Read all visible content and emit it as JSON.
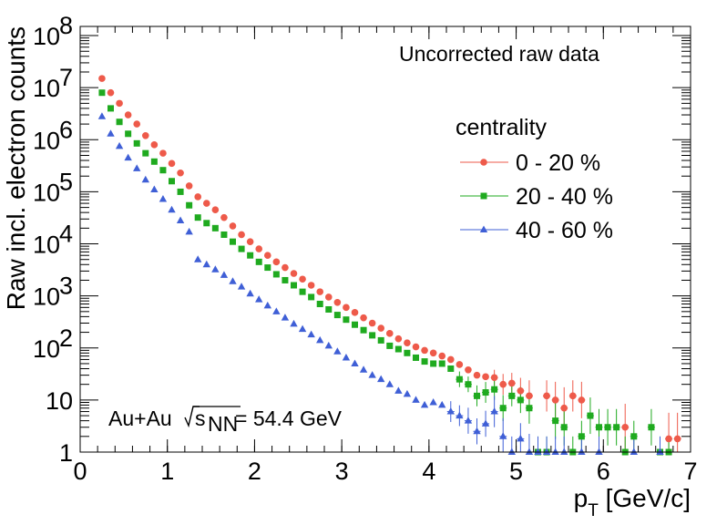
{
  "chart_data": {
    "type": "scatter",
    "ylabel": "Raw incl. electron counts",
    "xlabel": {
      "main": "p",
      "sub": "T",
      "unit": " [GeV/c]"
    },
    "annotation_top": "Uncorrected raw data",
    "annotation_bottom": {
      "system": "Au+Au",
      "sqrt_sub": "NN",
      "rest": " = 54.4 GeV"
    },
    "legend": {
      "title": "centrality",
      "placement": "top-right"
    },
    "xlim": [
      0,
      7
    ],
    "ylim": [
      1,
      150000000
    ],
    "y_scale": "log",
    "x_ticks": [
      "0",
      "1",
      "2",
      "3",
      "4",
      "5",
      "6",
      "7"
    ],
    "y_ticks": [
      {
        "value": 1,
        "label": "1"
      },
      {
        "value": 10,
        "label": "10"
      },
      {
        "value": 100,
        "label": "10",
        "exp": "2"
      },
      {
        "value": 1000,
        "label": "10",
        "exp": "3"
      },
      {
        "value": 10000,
        "label": "10",
        "exp": "4"
      },
      {
        "value": 100000,
        "label": "10",
        "exp": "5"
      },
      {
        "value": 1000000,
        "label": "10",
        "exp": "6"
      },
      {
        "value": 10000000,
        "label": "10",
        "exp": "7"
      },
      {
        "value": 100000000,
        "label": "10",
        "exp": "8"
      }
    ],
    "series": [
      {
        "name": "0 - 20 %",
        "color": "#ee5a4a",
        "marker": "circle",
        "x": [
          0.25,
          0.35,
          0.45,
          0.55,
          0.65,
          0.75,
          0.85,
          0.95,
          1.05,
          1.15,
          1.25,
          1.35,
          1.45,
          1.55,
          1.65,
          1.75,
          1.85,
          1.95,
          2.05,
          2.15,
          2.25,
          2.35,
          2.45,
          2.55,
          2.65,
          2.75,
          2.85,
          2.95,
          3.05,
          3.15,
          3.25,
          3.35,
          3.45,
          3.55,
          3.65,
          3.75,
          3.85,
          3.95,
          4.05,
          4.15,
          4.25,
          4.35,
          4.45,
          4.55,
          4.65,
          4.75,
          4.85,
          4.95,
          5.05,
          5.15,
          5.35,
          5.45,
          5.55,
          5.65,
          5.75,
          6.25,
          6.75,
          6.85
        ],
        "y": [
          15000000,
          8000000,
          5000000,
          3000000,
          2000000,
          1200000,
          800000,
          550000,
          350000,
          230000,
          130000,
          80000,
          60000,
          45000,
          32000,
          22000,
          15000,
          11000,
          8000,
          6000,
          4500,
          3500,
          2700,
          2100,
          1600,
          1200,
          950,
          750,
          600,
          480,
          380,
          300,
          240,
          190,
          150,
          125,
          105,
          90,
          80,
          70,
          60,
          48,
          38,
          30,
          28,
          27,
          20,
          21,
          15,
          12,
          12,
          10,
          7,
          12,
          10,
          3,
          1.8,
          1.8
        ],
        "err": [
          0,
          0,
          0,
          0,
          0,
          0,
          0,
          0,
          0,
          0,
          0,
          0,
          0,
          0,
          0,
          0,
          0,
          0,
          0,
          0,
          0,
          0,
          0,
          0,
          0,
          0,
          0,
          0,
          0,
          0,
          0,
          0,
          0,
          0,
          0,
          0,
          0,
          0,
          0,
          0,
          0,
          0,
          0,
          0,
          0,
          0.15,
          0.2,
          0.2,
          0.25,
          0.3,
          0.3,
          0.35,
          0.4,
          0.3,
          0.35,
          0.45,
          0.5,
          0.5
        ]
      },
      {
        "name": "20 - 40 %",
        "color": "#1faa1f",
        "marker": "square",
        "x": [
          0.25,
          0.35,
          0.45,
          0.55,
          0.65,
          0.75,
          0.85,
          0.95,
          1.05,
          1.15,
          1.25,
          1.35,
          1.45,
          1.55,
          1.65,
          1.75,
          1.85,
          1.95,
          2.05,
          2.15,
          2.25,
          2.35,
          2.45,
          2.55,
          2.65,
          2.75,
          2.85,
          2.95,
          3.05,
          3.15,
          3.25,
          3.35,
          3.45,
          3.55,
          3.65,
          3.75,
          3.85,
          3.95,
          4.05,
          4.15,
          4.25,
          4.35,
          4.45,
          4.55,
          4.65,
          4.75,
          4.85,
          4.95,
          5.05,
          5.15,
          5.25,
          5.35,
          5.45,
          5.55,
          5.65,
          5.75,
          5.85,
          5.95,
          6.05,
          6.15,
          6.25,
          6.35,
          6.55,
          6.65,
          6.75
        ],
        "y": [
          8000000,
          4000000,
          2200000,
          1300000,
          850000,
          550000,
          380000,
          260000,
          160000,
          100000,
          55000,
          32000,
          25000,
          20000,
          15000,
          11000,
          8000,
          6000,
          4500,
          3500,
          2600,
          2000,
          1600,
          1200,
          950,
          700,
          550,
          430,
          350,
          280,
          220,
          175,
          140,
          110,
          95,
          80,
          65,
          55,
          50,
          50,
          40,
          25,
          20,
          12,
          14,
          16,
          7,
          12,
          10,
          7,
          1,
          1,
          4,
          3,
          1,
          2,
          5,
          3,
          3,
          3,
          1,
          2,
          3,
          1,
          1
        ],
        "err": [
          0,
          0,
          0,
          0,
          0,
          0,
          0,
          0,
          0,
          0,
          0,
          0,
          0,
          0,
          0,
          0,
          0,
          0,
          0,
          0,
          0,
          0,
          0,
          0,
          0,
          0,
          0,
          0,
          0,
          0,
          0,
          0,
          0,
          0,
          0,
          0,
          0,
          0,
          0,
          0,
          0,
          0.15,
          0.15,
          0.2,
          0.2,
          0.2,
          0.25,
          0.2,
          0.25,
          0.3,
          0.3,
          0.3,
          0.35,
          0.35,
          0.3,
          0.3,
          0.35,
          0.35,
          0.35,
          0.35,
          0.3,
          0.3,
          0.35,
          0.3,
          0.3
        ]
      },
      {
        "name": "40 - 60 %",
        "color": "#3f5fd6",
        "marker": "triangle",
        "x": [
          0.25,
          0.35,
          0.45,
          0.55,
          0.65,
          0.75,
          0.85,
          0.95,
          1.05,
          1.15,
          1.25,
          1.35,
          1.45,
          1.55,
          1.65,
          1.75,
          1.85,
          1.95,
          2.05,
          2.15,
          2.25,
          2.35,
          2.45,
          2.55,
          2.65,
          2.75,
          2.85,
          2.95,
          3.05,
          3.15,
          3.25,
          3.35,
          3.45,
          3.55,
          3.65,
          3.75,
          3.85,
          3.95,
          4.05,
          4.15,
          4.25,
          4.35,
          4.45,
          4.55,
          4.65,
          4.75,
          4.85,
          4.95,
          5.05,
          5.15,
          5.25,
          5.35,
          5.45,
          5.55,
          5.75,
          5.95,
          6.35,
          6.65
        ],
        "y": [
          2800000,
          1300000,
          750000,
          450000,
          280000,
          170000,
          110000,
          72000,
          45000,
          28000,
          17000,
          5000,
          4000,
          3200,
          2500,
          1900,
          1500,
          1100,
          850,
          650,
          500,
          380,
          290,
          230,
          180,
          140,
          110,
          85,
          65,
          50,
          38,
          30,
          25,
          20,
          15,
          13,
          10,
          8,
          9,
          8,
          6,
          5,
          4,
          2.5,
          3.5,
          6,
          2,
          1,
          1.8,
          1,
          1,
          1,
          1,
          1,
          1,
          1,
          1,
          1
        ],
        "err": [
          0,
          0,
          0,
          0,
          0,
          0,
          0,
          0,
          0,
          0,
          0,
          0,
          0,
          0,
          0,
          0,
          0,
          0,
          0,
          0,
          0,
          0,
          0,
          0,
          0,
          0,
          0,
          0,
          0,
          0,
          0,
          0,
          0,
          0,
          0,
          0,
          0,
          0,
          0,
          0,
          0.2,
          0.2,
          0.25,
          0.25,
          0.25,
          0.3,
          0.35,
          0.3,
          0.3,
          0.35,
          0.3,
          0.3,
          0.3,
          0.3,
          0.3,
          0.3,
          0.3,
          0.3
        ]
      }
    ]
  }
}
